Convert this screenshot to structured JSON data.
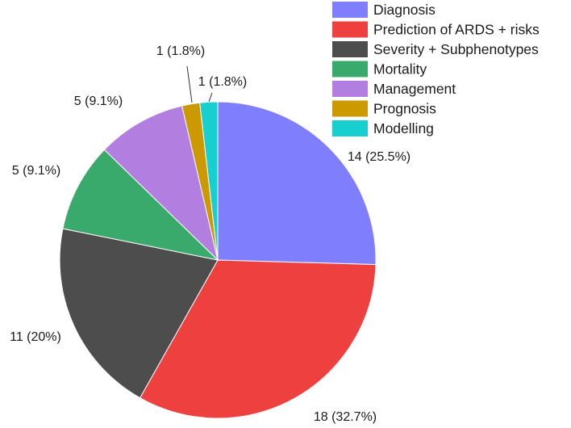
{
  "chart_data": {
    "type": "pie",
    "title": "",
    "slices": [
      {
        "name": "Diagnosis",
        "value": 14,
        "label": "14 (25.5%)",
        "color": "#7f7ffd"
      },
      {
        "name": "Prediction of ARDS + risks",
        "value": 18,
        "label": "18 (32.7%)",
        "color": "#ef4040"
      },
      {
        "name": "Severity + Subphenotypes",
        "value": 11,
        "label": "11 (20%)",
        "color": "#4d4d4d"
      },
      {
        "name": "Mortality",
        "value": 5,
        "label": "5 (9.1%)",
        "color": "#3aaa6c"
      },
      {
        "name": "Management",
        "value": 5,
        "label": "5 (9.1%)",
        "color": "#b27fe0"
      },
      {
        "name": "Prognosis",
        "value": 1,
        "label": "1 (1.8%)",
        "color": "#cc9900"
      },
      {
        "name": "Modelling",
        "value": 1,
        "label": "1 (1.8%)",
        "color": "#18cfcf"
      }
    ],
    "start_angle_deg": 0,
    "direction": "clockwise",
    "legend_position": "top-right"
  }
}
